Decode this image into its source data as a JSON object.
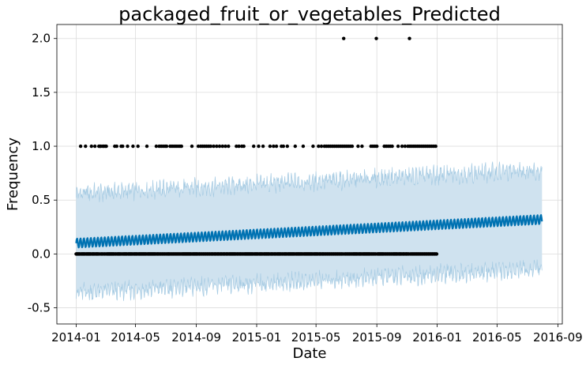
{
  "chart_data": {
    "type": "scatter",
    "title": "packaged_fruit_or_vegetables_Predicted",
    "xlabel": "Date",
    "ylabel": "Frequency",
    "x_range": [
      "2013-11-23",
      "2016-09-10"
    ],
    "y_range": [
      -0.65,
      2.13
    ],
    "x_ticks": [
      "2014-01",
      "2014-05",
      "2014-09",
      "2015-01",
      "2015-05",
      "2015-09",
      "2016-01",
      "2016-05",
      "2016-09"
    ],
    "y_ticks": [
      -0.5,
      0.0,
      0.5,
      1.0,
      1.5,
      2.0
    ],
    "grid": true,
    "legend": "none",
    "colors": {
      "observed": "#000000",
      "forecast_line": "#0072B2",
      "uncertainty_fill": "#cfe2ef",
      "uncertainty_edge": "#a6cbe3",
      "grid": "#dcdcdc"
    },
    "observations": {
      "name": "observed",
      "x_range": [
        "2014-01-01",
        "2015-12-31"
      ],
      "baseline_y": 0.0,
      "ones_dates": [
        "2014-01-10",
        "2014-01-20",
        "2014-02-01",
        "2014-02-08",
        "2014-02-16",
        "2014-02-18",
        "2014-02-20",
        "2014-02-24",
        "2014-02-26",
        "2014-03-01",
        "2014-03-03",
        "2014-03-20",
        "2014-03-24",
        "2014-04-02",
        "2014-04-05",
        "2014-04-15",
        "2014-04-26",
        "2014-05-06",
        "2014-05-24",
        "2014-06-12",
        "2014-06-18",
        "2014-06-22",
        "2014-06-26",
        "2014-06-30",
        "2014-07-03",
        "2014-07-10",
        "2014-07-14",
        "2014-07-18",
        "2014-07-22",
        "2014-07-26",
        "2014-07-30",
        "2014-08-02",
        "2014-08-23",
        "2014-09-05",
        "2014-09-10",
        "2014-09-14",
        "2014-09-18",
        "2014-09-22",
        "2014-09-26",
        "2014-09-30",
        "2014-10-06",
        "2014-10-12",
        "2014-10-18",
        "2014-10-24",
        "2014-10-30",
        "2014-11-05",
        "2014-11-21",
        "2014-11-26",
        "2014-12-02",
        "2014-12-06",
        "2014-12-26",
        "2015-01-05",
        "2015-01-14",
        "2015-01-28",
        "2015-02-04",
        "2015-02-10",
        "2015-02-20",
        "2015-02-24",
        "2015-03-04",
        "2015-03-20",
        "2015-04-05",
        "2015-04-25",
        "2015-05-06",
        "2015-05-12",
        "2015-05-18",
        "2015-05-22",
        "2015-05-26",
        "2015-05-30",
        "2015-06-03",
        "2015-06-07",
        "2015-06-11",
        "2015-06-15",
        "2015-06-19",
        "2015-06-23",
        "2015-06-27",
        "2015-07-01",
        "2015-07-05",
        "2015-07-09",
        "2015-07-13",
        "2015-07-25",
        "2015-08-02",
        "2015-08-20",
        "2015-08-24",
        "2015-08-28",
        "2015-09-01",
        "2015-09-16",
        "2015-09-20",
        "2015-09-24",
        "2015-09-28",
        "2015-10-02",
        "2015-10-14",
        "2015-10-22",
        "2015-10-28",
        "2015-11-03",
        "2015-11-07",
        "2015-11-11",
        "2015-11-15",
        "2015-11-19",
        "2015-11-23",
        "2015-11-27",
        "2015-12-01",
        "2015-12-05",
        "2015-12-09",
        "2015-12-13",
        "2015-12-17",
        "2015-12-21",
        "2015-12-25",
        "2015-12-29"
      ],
      "twos_dates": [
        "2015-06-26",
        "2015-08-31",
        "2015-11-06"
      ]
    },
    "forecast": {
      "name": "forecast",
      "x_range": [
        "2014-01-01",
        "2016-07-31"
      ],
      "trend_start": 0.1,
      "trend_end": 0.32,
      "weekly_amplitude": 0.05,
      "interval_halfwidth": 0.46
    }
  }
}
